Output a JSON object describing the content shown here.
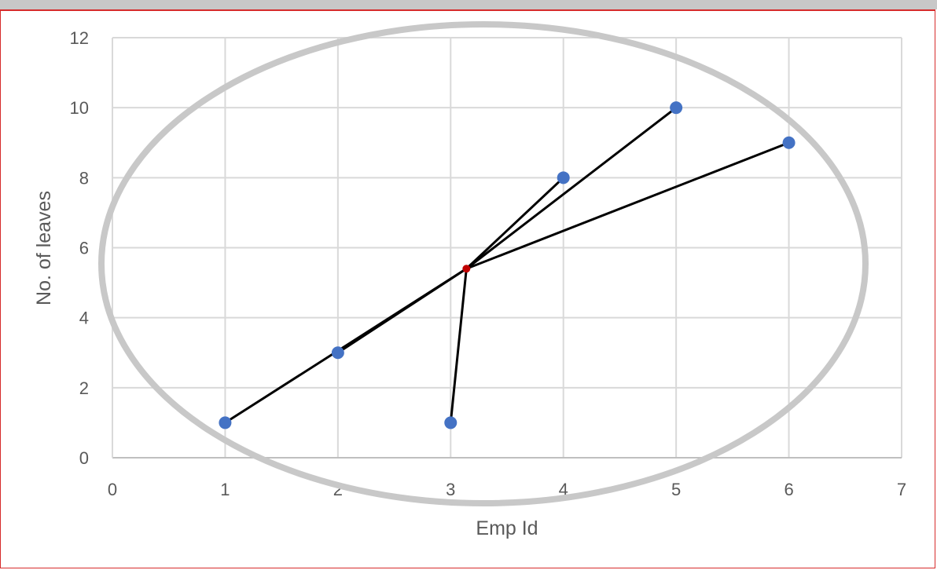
{
  "chart_data": {
    "type": "scatter",
    "xlabel": "Emp Id",
    "ylabel": "No. of leaves",
    "xlim": [
      0,
      7
    ],
    "ylim": [
      0,
      12
    ],
    "x_ticks": [
      "0",
      "1",
      "2",
      "3",
      "4",
      "5",
      "6",
      "7"
    ],
    "y_ticks": [
      "0",
      "2",
      "4",
      "6",
      "8",
      "10",
      "12"
    ],
    "grid": true,
    "series": [
      {
        "color": "#4472c4",
        "points": [
          {
            "x": 1,
            "y": 1
          },
          {
            "x": 2,
            "y": 3
          },
          {
            "x": 3,
            "y": 1
          },
          {
            "x": 4,
            "y": 8
          },
          {
            "x": 5,
            "y": 10
          },
          {
            "x": 6,
            "y": 9
          }
        ]
      }
    ],
    "centroid": {
      "x": 3.14,
      "y": 5.4,
      "color": "#c00000"
    },
    "annotations": {
      "centroid_lines_color": "#000000",
      "cluster_ellipse_color": "#c8c8c8"
    }
  }
}
